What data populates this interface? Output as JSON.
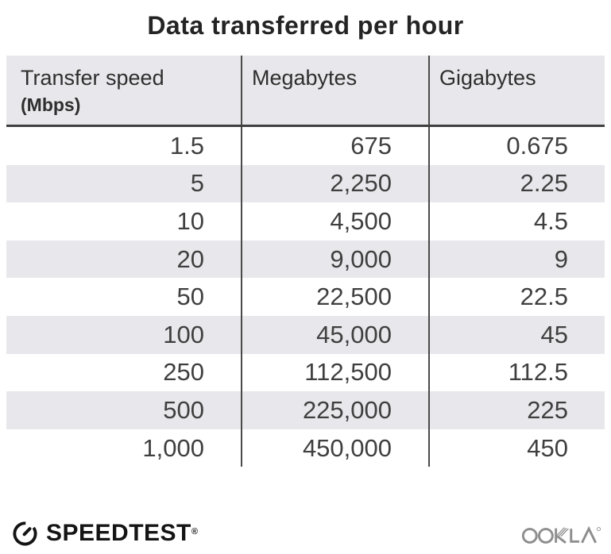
{
  "title": "Data transferred per hour",
  "table": {
    "header": {
      "col1_label": "Transfer speed",
      "col1_sublabel": "(Mbps)",
      "col2_label": "Megabytes",
      "col3_label": "Gigabytes"
    },
    "rows": [
      [
        "1.5",
        "675",
        "0.675"
      ],
      [
        "5",
        "2,250",
        "2.25"
      ],
      [
        "10",
        "4,500",
        "4.5"
      ],
      [
        "20",
        "9,000",
        "9"
      ],
      [
        "50",
        "22,500",
        "22.5"
      ],
      [
        "100",
        "45,000",
        "45"
      ],
      [
        "250",
        "112,500",
        "112.5"
      ],
      [
        "500",
        "225,000",
        "225"
      ],
      [
        "1,000",
        "450,000",
        "450"
      ]
    ]
  },
  "chart_data": {
    "type": "table",
    "title": "Data transferred per hour",
    "columns": [
      "Transfer speed (Mbps)",
      "Megabytes",
      "Gigabytes"
    ],
    "rows": [
      [
        1.5,
        675,
        0.675
      ],
      [
        5,
        2250,
        2.25
      ],
      [
        10,
        4500,
        4.5
      ],
      [
        20,
        9000,
        9
      ],
      [
        50,
        22500,
        22.5
      ],
      [
        100,
        45000,
        45
      ],
      [
        250,
        112500,
        112.5
      ],
      [
        500,
        225000,
        225
      ],
      [
        1000,
        450000,
        450
      ]
    ],
    "stripe_rows": "even data rows shaded",
    "legend_position": "none",
    "grid": "column dividers only"
  },
  "footer": {
    "speedtest_label": "SPEEDTEST",
    "speedtest_registered": "®",
    "ookla_label": "OOKLA",
    "ookla_registered": "®"
  },
  "colors": {
    "background": "#ffffff",
    "stripe": "#e8e8ec",
    "header_bg": "#e8e8ec",
    "divider": "#4a4a4a",
    "header_rule": "#3f3f3f",
    "number_text": "#3f3f3f",
    "header_text": "#2e2e2e",
    "title_text": "#242424",
    "speedtest_black": "#141414",
    "ookla_gray": "#8e8e8e"
  }
}
